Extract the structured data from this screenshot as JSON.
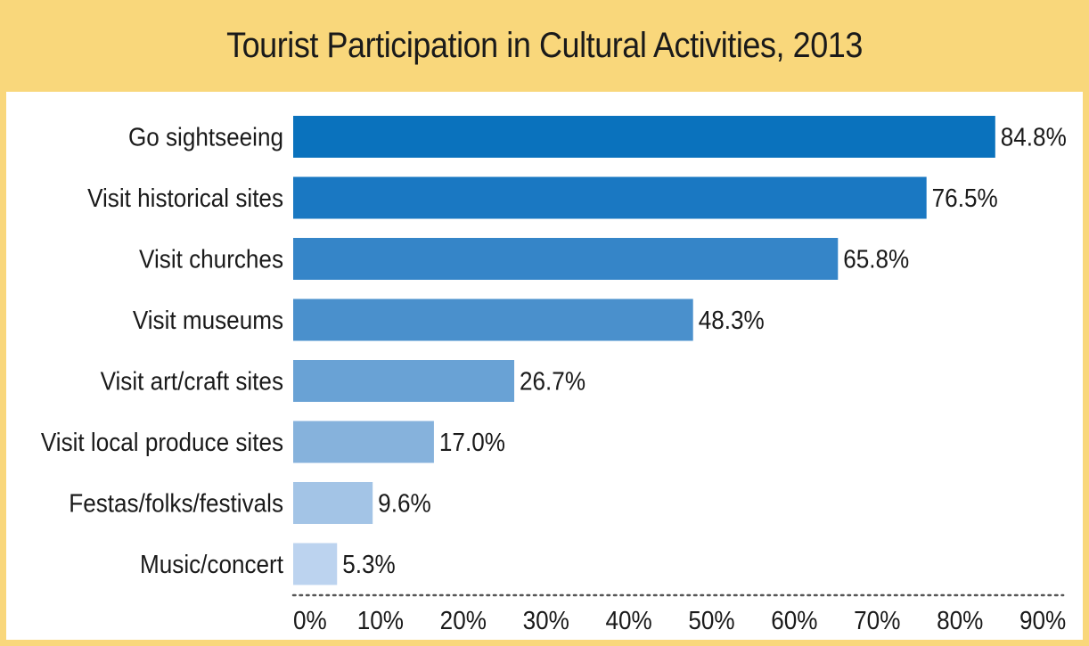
{
  "chart_data": {
    "type": "bar",
    "orientation": "horizontal",
    "title": "Tourist Participation in Cultural Activities, 2013",
    "categories": [
      "Go sightseeing",
      "Visit historical sites",
      "Visit churches",
      "Visit museums",
      "Visit art/craft sites",
      "Visit local produce sites",
      "Festas/folks/festivals",
      "Music/concert"
    ],
    "values": [
      84.8,
      76.5,
      65.8,
      48.3,
      26.7,
      17.0,
      9.6,
      5.3
    ],
    "value_labels": [
      "84.8%",
      "76.5%",
      "65.8%",
      "48.3%",
      "26.7%",
      "17.0%",
      "9.6%",
      "5.3%"
    ],
    "bar_colors": [
      "#0a72bd",
      "#1a78c2",
      "#3585c8",
      "#4a90cc",
      "#69a2d5",
      "#86b2dc",
      "#a3c4e6",
      "#bcd3ef"
    ],
    "xlim": [
      0,
      90
    ],
    "xticks": [
      0,
      10,
      20,
      30,
      40,
      50,
      60,
      70,
      80,
      90
    ],
    "xtick_labels": [
      "0%",
      "10%",
      "20%",
      "30%",
      "40%",
      "50%",
      "60%",
      "70%",
      "80%",
      "90%"
    ],
    "xlabel": "",
    "ylabel": "",
    "grid": false,
    "legend": "none",
    "title_band_color": "#f9d77b"
  }
}
